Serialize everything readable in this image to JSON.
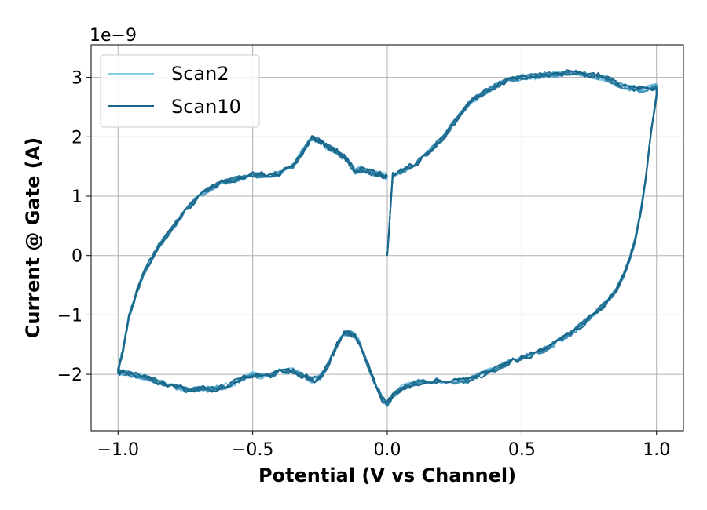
{
  "chart_data": {
    "type": "line",
    "title": "",
    "xlabel": "Potential (V vs Channel)",
    "ylabel": "Current @ Gate (A)",
    "y_offset_label": "1e−9",
    "xlim": [
      -1.1,
      1.1
    ],
    "ylim": [
      -2.95,
      3.55
    ],
    "x_ticks": [
      -1.0,
      -0.5,
      0.0,
      0.5,
      1.0
    ],
    "x_tick_labels": [
      "−1.0",
      "−0.5",
      "0.0",
      "0.5",
      "1.0"
    ],
    "y_ticks": [
      -2,
      -1,
      0,
      1,
      2,
      3
    ],
    "y_tick_labels": [
      "−2",
      "−1",
      "0",
      "1",
      "2",
      "3"
    ],
    "grid": true,
    "legend_position": "upper-left",
    "series_count": 9,
    "legend": [
      {
        "name": "Scan2",
        "color": "#87ceeb"
      },
      {
        "name": "Scan10",
        "color": "#176689"
      }
    ],
    "series": [
      {
        "name": "Scan2",
        "color": "#87ceeb",
        "noise": 0.06,
        "seed": 2
      },
      {
        "color": "#74bfe0",
        "noise": 0.05,
        "seed": 3
      },
      {
        "color": "#62b0d4",
        "noise": 0.05,
        "seed": 4
      },
      {
        "color": "#52a1c6",
        "noise": 0.05,
        "seed": 5
      },
      {
        "color": "#4392b7",
        "noise": 0.05,
        "seed": 6
      },
      {
        "color": "#3583a8",
        "noise": 0.05,
        "seed": 7
      },
      {
        "color": "#287598",
        "noise": 0.05,
        "seed": 8
      },
      {
        "color": "#1f6e90",
        "noise": 0.05,
        "seed": 9
      },
      {
        "name": "Scan10",
        "color": "#176689",
        "noise": 0.06,
        "seed": 10
      }
    ],
    "base_curve": {
      "x": [
        0.0,
        0.02,
        0.05,
        0.1,
        0.15,
        0.2,
        0.25,
        0.3,
        0.35,
        0.4,
        0.45,
        0.5,
        0.55,
        0.6,
        0.65,
        0.7,
        0.75,
        0.8,
        0.85,
        0.9,
        0.95,
        1.0,
        1.0,
        0.98,
        0.96,
        0.94,
        0.92,
        0.9,
        0.88,
        0.86,
        0.84,
        0.8,
        0.75,
        0.7,
        0.65,
        0.6,
        0.55,
        0.5,
        0.45,
        0.4,
        0.35,
        0.3,
        0.25,
        0.2,
        0.15,
        0.1,
        0.05,
        0.02,
        0.0,
        -0.02,
        -0.05,
        -0.08,
        -0.1,
        -0.12,
        -0.14,
        -0.16,
        -0.18,
        -0.2,
        -0.22,
        -0.25,
        -0.28,
        -0.3,
        -0.35,
        -0.4,
        -0.45,
        -0.5,
        -0.55,
        -0.6,
        -0.65,
        -0.7,
        -0.75,
        -0.8,
        -0.85,
        -0.9,
        -0.95,
        -0.98,
        -1.0,
        -1.0,
        -0.98,
        -0.96,
        -0.93,
        -0.9,
        -0.85,
        -0.8,
        -0.75,
        -0.7,
        -0.65,
        -0.6,
        -0.55,
        -0.5,
        -0.45,
        -0.4,
        -0.35,
        -0.3,
        -0.28,
        -0.26,
        -0.24,
        -0.22,
        -0.2,
        -0.18,
        -0.16,
        -0.14,
        -0.12,
        -0.1,
        -0.08,
        -0.06,
        -0.04,
        -0.02,
        0.0
      ],
      "y": [
        0.0,
        1.35,
        1.42,
        1.52,
        1.72,
        1.95,
        2.25,
        2.55,
        2.72,
        2.85,
        2.95,
        3.0,
        3.02,
        3.05,
        3.06,
        3.08,
        3.05,
        3.0,
        2.9,
        2.82,
        2.8,
        2.85,
        2.7,
        2.1,
        1.3,
        0.7,
        0.25,
        -0.05,
        -0.3,
        -0.5,
        -0.65,
        -0.85,
        -1.05,
        -1.25,
        -1.4,
        -1.55,
        -1.65,
        -1.72,
        -1.8,
        -1.9,
        -2.0,
        -2.1,
        -2.12,
        -2.1,
        -2.1,
        -2.15,
        -2.25,
        -2.35,
        -2.5,
        -2.4,
        -2.1,
        -1.75,
        -1.5,
        -1.35,
        -1.3,
        -1.32,
        -1.45,
        -1.65,
        -1.85,
        -2.05,
        -2.1,
        -2.05,
        -1.95,
        -1.95,
        -2.05,
        -2.0,
        -2.1,
        -2.2,
        -2.25,
        -2.25,
        -2.25,
        -2.2,
        -2.12,
        -2.05,
        -2.0,
        -1.97,
        -1.95,
        -1.95,
        -1.55,
        -1.05,
        -0.6,
        -0.25,
        0.15,
        0.45,
        0.75,
        1.0,
        1.15,
        1.25,
        1.3,
        1.35,
        1.35,
        1.38,
        1.5,
        1.85,
        1.98,
        1.95,
        1.88,
        1.82,
        1.78,
        1.72,
        1.65,
        1.55,
        1.42,
        1.45,
        1.42,
        1.4,
        1.38,
        1.36,
        1.32
      ]
    }
  }
}
